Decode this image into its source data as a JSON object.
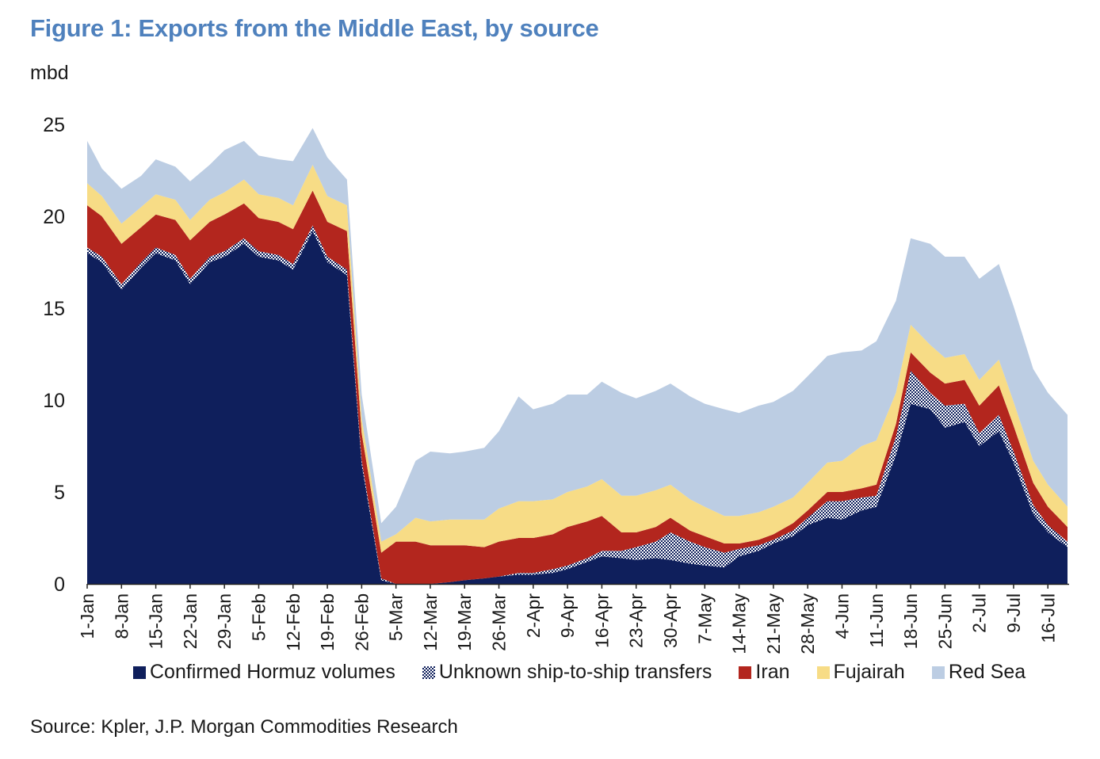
{
  "title": "Figure 1: Exports from the Middle East, by source",
  "source": "Source: Kpler, J.P. Morgan Commodities Research",
  "colors": {
    "hormuz": "#0f1f5c",
    "sts": "#9aa2b8",
    "iran": "#b3261e",
    "fujairah": "#f7dc86",
    "redsea": "#bccde3",
    "title": "#4f81bd"
  },
  "legend": [
    {
      "key": "hormuz",
      "label": "Confirmed Hormuz volumes"
    },
    {
      "key": "sts",
      "label": "Unknown ship-to-ship transfers"
    },
    {
      "key": "iran",
      "label": "Iran"
    },
    {
      "key": "fujairah",
      "label": "Fujairah"
    },
    {
      "key": "redsea",
      "label": "Red Sea"
    }
  ],
  "chart_data": {
    "type": "area",
    "stacked": true,
    "title": "Figure 1: Exports from the Middle East, by source",
    "ylabel": "mbd",
    "xlabel": "",
    "ylim": [
      0,
      25
    ],
    "yticks": [
      0,
      5,
      10,
      15,
      20,
      25
    ],
    "grid": false,
    "legend_position": "bottom",
    "x": [
      "1-Jan",
      "4-Jan",
      "8-Jan",
      "12-Jan",
      "15-Jan",
      "19-Jan",
      "22-Jan",
      "26-Jan",
      "29-Jan",
      "2-Feb",
      "5-Feb",
      "9-Feb",
      "12-Feb",
      "16-Feb",
      "19-Feb",
      "23-Feb",
      "26-Feb",
      "2-Mar",
      "5-Mar",
      "9-Mar",
      "12-Mar",
      "16-Mar",
      "19-Mar",
      "23-Mar",
      "26-Mar",
      "30-Mar",
      "2-Apr",
      "6-Apr",
      "9-Apr",
      "13-Apr",
      "16-Apr",
      "20-Apr",
      "23-Apr",
      "27-Apr",
      "30-Apr",
      "4-May",
      "7-May",
      "11-May",
      "14-May",
      "18-May",
      "21-May",
      "25-May",
      "28-May",
      "1-Jun",
      "4-Jun",
      "8-Jun",
      "11-Jun",
      "15-Jun",
      "18-Jun",
      "22-Jun",
      "25-Jun",
      "29-Jun",
      "2-Jul",
      "6-Jul",
      "9-Jul",
      "13-Jul",
      "16-Jul",
      "20-Jul"
    ],
    "x_tick_labels": [
      "1-Jan",
      "8-Jan",
      "15-Jan",
      "22-Jan",
      "29-Jan",
      "5-Feb",
      "12-Feb",
      "19-Feb",
      "26-Feb",
      "5-Mar",
      "12-Mar",
      "19-Mar",
      "26-Mar",
      "2-Apr",
      "9-Apr",
      "16-Apr",
      "23-Apr",
      "30-Apr",
      "7-May",
      "14-May",
      "21-May",
      "28-May",
      "4-Jun",
      "11-Jun",
      "18-Jun",
      "25-Jun",
      "2-Jul",
      "9-Jul",
      "16-Jul"
    ],
    "series": [
      {
        "name": "Confirmed Hormuz volumes",
        "key": "hormuz",
        "values": [
          18.0,
          17.5,
          16.0,
          17.2,
          18.0,
          17.6,
          16.3,
          17.5,
          17.8,
          18.5,
          17.8,
          17.6,
          17.1,
          19.2,
          17.5,
          16.8,
          6.5,
          0.2,
          0,
          0,
          0,
          0.1,
          0.2,
          0.3,
          0.4,
          0.5,
          0.5,
          0.6,
          0.8,
          1.2,
          1.5,
          1.4,
          1.3,
          1.4,
          1.3,
          1.1,
          1.0,
          0.9,
          1.5,
          1.8,
          2.2,
          2.6,
          3.2,
          3.6,
          3.5,
          4.0,
          4.2,
          7.0,
          9.8,
          9.5,
          8.5,
          8.8,
          7.5,
          8.3,
          6.6,
          3.8,
          2.8,
          2.0
        ]
      },
      {
        "name": "Unknown ship-to-ship transfers",
        "key": "sts",
        "values": [
          0.3,
          0.3,
          0.3,
          0.3,
          0.3,
          0.3,
          0.3,
          0.3,
          0.3,
          0.3,
          0.3,
          0.3,
          0.3,
          0.3,
          0.3,
          0.3,
          0.2,
          0.1,
          0,
          0,
          0,
          0,
          0,
          0,
          0,
          0.1,
          0.1,
          0.2,
          0.2,
          0.2,
          0.3,
          0.4,
          0.7,
          0.9,
          1.5,
          1.2,
          1.0,
          0.8,
          0.4,
          0.3,
          0.2,
          0.3,
          0.4,
          0.9,
          1.0,
          0.7,
          0.6,
          1.0,
          1.8,
          0.9,
          1.2,
          1.0,
          0.7,
          0.9,
          0.6,
          0.5,
          0.4,
          0.3
        ]
      },
      {
        "name": "Iran",
        "key": "iran",
        "values": [
          2.3,
          2.2,
          2.2,
          1.9,
          1.8,
          1.9,
          2.1,
          1.9,
          2.0,
          1.9,
          1.8,
          1.8,
          1.9,
          1.9,
          1.9,
          2.1,
          1.5,
          1.4,
          2.3,
          2.3,
          2.1,
          2.0,
          1.9,
          1.7,
          1.9,
          1.9,
          1.9,
          1.9,
          2.1,
          2.0,
          1.9,
          1.0,
          0.8,
          0.8,
          0.8,
          0.6,
          0.6,
          0.5,
          0.3,
          0.3,
          0.3,
          0.4,
          0.4,
          0.5,
          0.5,
          0.5,
          0.6,
          0.7,
          1.0,
          1.1,
          1.2,
          1.3,
          1.5,
          1.6,
          1.4,
          1.2,
          1.0,
          0.8
        ]
      },
      {
        "name": "Fujairah",
        "key": "fujairah",
        "values": [
          1.2,
          1.1,
          1.1,
          1.1,
          1.1,
          1.1,
          1.1,
          1.2,
          1.2,
          1.3,
          1.3,
          1.3,
          1.3,
          1.4,
          1.4,
          1.4,
          0.8,
          0.6,
          0.4,
          1.3,
          1.3,
          1.4,
          1.4,
          1.5,
          1.8,
          2.0,
          2.0,
          1.9,
          1.9,
          1.9,
          2.0,
          2.0,
          2.0,
          2.0,
          1.8,
          1.7,
          1.6,
          1.5,
          1.5,
          1.5,
          1.5,
          1.4,
          1.5,
          1.6,
          1.7,
          2.3,
          2.4,
          1.7,
          1.5,
          1.5,
          1.4,
          1.4,
          1.4,
          1.4,
          1.3,
          1.2,
          1.2,
          1.1
        ]
      },
      {
        "name": "Red Sea",
        "key": "redsea",
        "values": [
          2.3,
          1.5,
          1.9,
          1.7,
          1.9,
          1.8,
          2.1,
          1.9,
          2.3,
          2.1,
          2.1,
          2.1,
          2.4,
          2.0,
          2.1,
          1.4,
          1.3,
          1.0,
          1.5,
          3.1,
          3.8,
          3.6,
          3.7,
          3.9,
          4.2,
          5.7,
          5.0,
          5.2,
          5.3,
          5.0,
          5.3,
          5.6,
          5.3,
          5.4,
          5.5,
          5.6,
          5.6,
          5.8,
          5.6,
          5.8,
          5.7,
          5.8,
          5.8,
          5.8,
          5.9,
          5.2,
          5.4,
          5.0,
          4.7,
          5.5,
          5.5,
          5.3,
          5.5,
          5.2,
          5.2,
          5.0,
          5.0,
          5.0
        ]
      }
    ]
  }
}
